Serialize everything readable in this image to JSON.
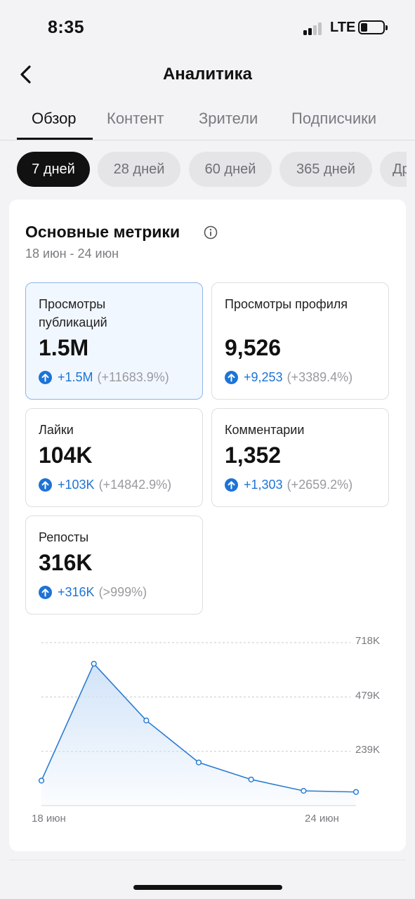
{
  "status_bar": {
    "time": "8:35",
    "network": "LTE"
  },
  "nav": {
    "title": "Аналитика"
  },
  "tabs": [
    {
      "label": "Обзор",
      "active": true
    },
    {
      "label": "Контент",
      "active": false
    },
    {
      "label": "Зрители",
      "active": false
    },
    {
      "label": "Подписчики",
      "active": false
    }
  ],
  "ranges": [
    {
      "label": "7 дней",
      "active": true
    },
    {
      "label": "28 дней",
      "active": false
    },
    {
      "label": "60 дней",
      "active": false
    },
    {
      "label": "365 дней",
      "active": false
    },
    {
      "label": "Др",
      "active": false
    }
  ],
  "metrics_card": {
    "title": "Основные метрики",
    "date_range": "18 июн - 24 июн",
    "metrics": [
      {
        "label": "Просмотры публикаций",
        "value": "1.5M",
        "change": "+1.5M",
        "percent": "(+11683.9%)",
        "selected": true
      },
      {
        "label": "Просмотры профиля",
        "value": "9,526",
        "change": "+9,253",
        "percent": "(+3389.4%)",
        "selected": false
      },
      {
        "label": "Лайки",
        "value": "104K",
        "change": "+103K",
        "percent": "(+14842.9%)",
        "selected": false
      },
      {
        "label": "Комментарии",
        "value": "1,352",
        "change": "+1,303",
        "percent": "(+2659.2%)",
        "selected": false
      },
      {
        "label": "Репосты",
        "value": "316K",
        "change": "+316K",
        "percent": "(>999%)",
        "selected": false
      }
    ]
  },
  "colors": {
    "accent": "#1d73d6",
    "line": "#2b7cd3",
    "fill": "#cfe2f8"
  },
  "chart_data": {
    "type": "area",
    "x_labels": [
      "18 июн",
      "24 июн"
    ],
    "y_ticks": [
      "718K",
      "479K",
      "239K"
    ],
    "y_tick_values": [
      718000,
      479000,
      239000
    ],
    "ylim": [
      0,
      718000
    ],
    "grid": true,
    "series": [
      {
        "values": [
          110000,
          625000,
          375000,
          190000,
          115000,
          65000,
          60000
        ]
      }
    ]
  }
}
